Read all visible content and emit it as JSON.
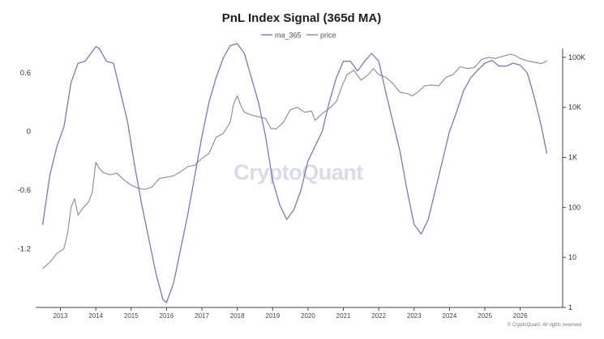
{
  "chart_data": {
    "type": "line",
    "title": "PnL Index Signal (365d MA)",
    "watermark": "CryptoQuant",
    "footer": "© CryptoQuant. All rights reserved",
    "x_axis": {
      "tick_labels": [
        "2013",
        "2014",
        "2015",
        "2016",
        "2017",
        "2018",
        "2019",
        "2020",
        "2021",
        "2022",
        "2023",
        "2024",
        "2025",
        "2026"
      ],
      "range": [
        2012.3,
        2027.2
      ]
    },
    "y_left": {
      "tick_labels": [
        "0.6",
        "0",
        "-0.6",
        "-1.2"
      ],
      "tick_values": [
        0.6,
        0,
        -0.6,
        -1.2
      ],
      "range": [
        -1.8,
        0.85
      ]
    },
    "y_right": {
      "scale": "log",
      "tick_labels": [
        "100K",
        "10K",
        "1K",
        "100",
        "10",
        "1"
      ],
      "tick_values": [
        100000,
        10000,
        1000,
        100,
        10,
        1
      ],
      "range": [
        1,
        150000
      ]
    },
    "series": [
      {
        "name": "ma_365",
        "axis": "left",
        "color": "#7b79b4",
        "x": [
          2012.5,
          2012.7,
          2012.9,
          2013.1,
          2013.3,
          2013.5,
          2013.7,
          2013.9,
          2014.0,
          2014.1,
          2014.3,
          2014.5,
          2014.7,
          2014.9,
          2015.1,
          2015.3,
          2015.5,
          2015.7,
          2015.9,
          2016.0,
          2016.2,
          2016.4,
          2016.6,
          2016.8,
          2017.0,
          2017.2,
          2017.4,
          2017.6,
          2017.8,
          2018.0,
          2018.2,
          2018.4,
          2018.6,
          2018.8,
          2019.0,
          2019.2,
          2019.4,
          2019.6,
          2019.8,
          2020.0,
          2020.2,
          2020.4,
          2020.6,
          2020.8,
          2021.0,
          2021.2,
          2021.4,
          2021.6,
          2021.8,
          2022.0,
          2022.2,
          2022.4,
          2022.6,
          2022.8,
          2023.0,
          2023.2,
          2023.4,
          2023.6,
          2023.8,
          2024.0,
          2024.2,
          2024.4,
          2024.6,
          2024.8,
          2025.0,
          2025.2,
          2025.4,
          2025.6,
          2025.8,
          2026.0,
          2026.2,
          2026.4,
          2026.6,
          2026.75
        ],
        "values": [
          -0.95,
          -0.45,
          -0.15,
          0.05,
          0.5,
          0.7,
          0.72,
          0.82,
          0.87,
          0.85,
          0.72,
          0.7,
          0.4,
          0.1,
          -0.35,
          -0.75,
          -1.1,
          -1.45,
          -1.72,
          -1.75,
          -1.55,
          -1.2,
          -0.85,
          -0.45,
          -0.05,
          0.3,
          0.55,
          0.75,
          0.88,
          0.9,
          0.8,
          0.55,
          0.3,
          -0.05,
          -0.5,
          -0.75,
          -0.9,
          -0.8,
          -0.6,
          -0.3,
          -0.15,
          0.0,
          0.3,
          0.55,
          0.72,
          0.72,
          0.62,
          0.72,
          0.8,
          0.72,
          0.4,
          0.1,
          -0.2,
          -0.6,
          -0.95,
          -1.05,
          -0.9,
          -0.6,
          -0.3,
          0.0,
          0.2,
          0.42,
          0.55,
          0.63,
          0.7,
          0.73,
          0.67,
          0.67,
          0.7,
          0.68,
          0.6,
          0.35,
          0.05,
          -0.22
        ]
      },
      {
        "name": "price",
        "axis": "right",
        "color": "#8a8a8a",
        "x": [
          2012.5,
          2012.7,
          2012.9,
          2013.1,
          2013.2,
          2013.3,
          2013.4,
          2013.5,
          2013.6,
          2013.8,
          2013.9,
          2014.0,
          2014.1,
          2014.2,
          2014.4,
          2014.6,
          2014.8,
          2015.0,
          2015.2,
          2015.4,
          2015.6,
          2015.8,
          2016.0,
          2016.2,
          2016.4,
          2016.6,
          2016.8,
          2017.0,
          2017.2,
          2017.4,
          2017.6,
          2017.8,
          2017.9,
          2018.0,
          2018.1,
          2018.2,
          2018.4,
          2018.6,
          2018.8,
          2018.95,
          2019.1,
          2019.3,
          2019.5,
          2019.7,
          2019.9,
          2020.1,
          2020.2,
          2020.4,
          2020.6,
          2020.8,
          2020.95,
          2021.1,
          2021.3,
          2021.5,
          2021.7,
          2021.85,
          2022.0,
          2022.2,
          2022.4,
          2022.6,
          2022.8,
          2022.95,
          2023.1,
          2023.3,
          2023.5,
          2023.7,
          2023.9,
          2024.1,
          2024.3,
          2024.5,
          2024.7,
          2024.9,
          2025.1,
          2025.3,
          2025.5,
          2025.7,
          2025.85,
          2026.0,
          2026.2,
          2026.4,
          2026.6,
          2026.75
        ],
        "values": [
          6,
          8,
          12,
          15,
          30,
          100,
          150,
          70,
          90,
          130,
          200,
          800,
          600,
          500,
          450,
          480,
          350,
          280,
          240,
          230,
          260,
          380,
          400,
          430,
          520,
          650,
          700,
          950,
          1200,
          2500,
          3000,
          5000,
          12000,
          17000,
          11000,
          8000,
          7000,
          6500,
          6000,
          3800,
          3700,
          5000,
          9000,
          10000,
          8000,
          8500,
          5500,
          7500,
          9500,
          13000,
          25000,
          45000,
          55000,
          35000,
          45000,
          60000,
          45000,
          40000,
          30000,
          20000,
          19000,
          17000,
          20000,
          27000,
          28000,
          27000,
          40000,
          45000,
          65000,
          60000,
          62000,
          90000,
          100000,
          95000,
          105000,
          115000,
          110000,
          95000,
          85000,
          80000,
          75000,
          85000
        ]
      }
    ]
  }
}
